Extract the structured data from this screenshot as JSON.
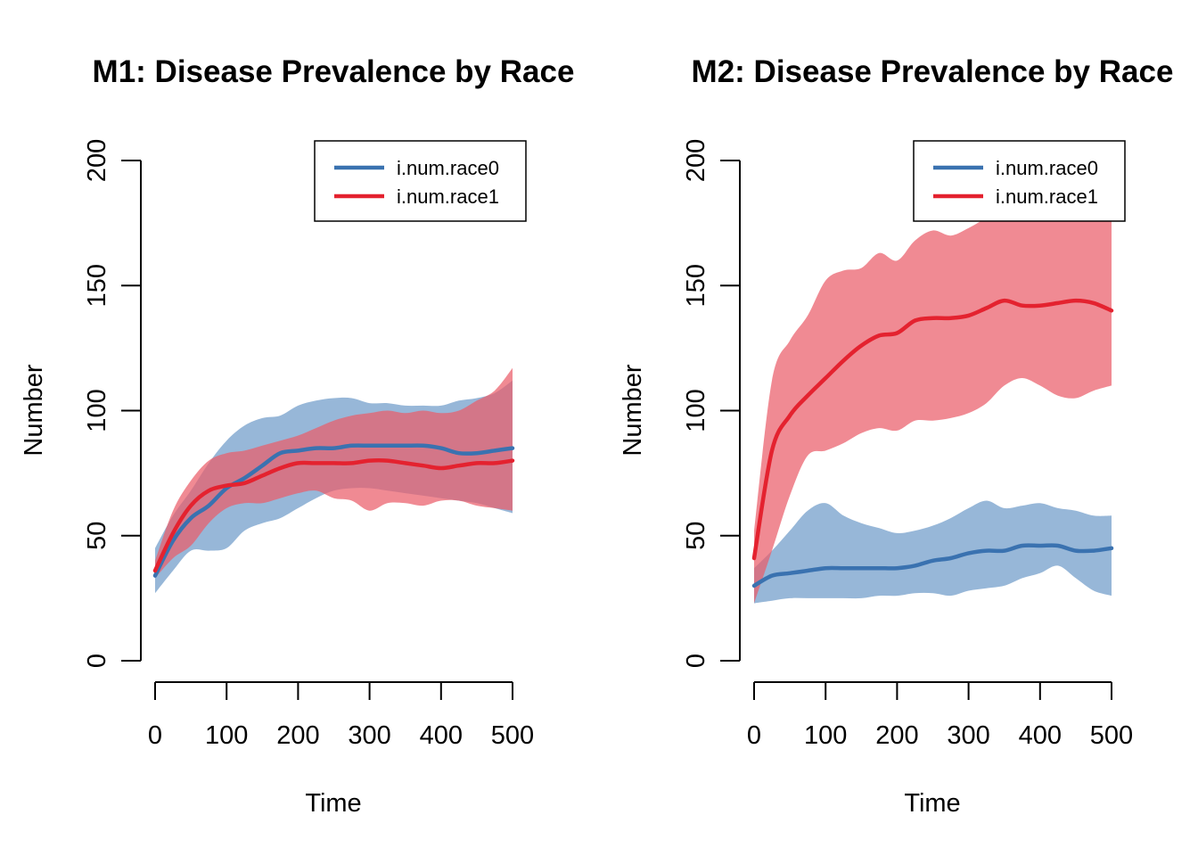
{
  "chart_data": [
    {
      "type": "area",
      "title": "M1: Disease Prevalence by Race",
      "xlabel": "Time",
      "ylabel": "Number",
      "xlim": [
        0,
        500
      ],
      "ylim": [
        0,
        200
      ],
      "xticks": [
        "0",
        "100",
        "200",
        "300",
        "400",
        "500"
      ],
      "yticks": [
        "0",
        "50",
        "100",
        "150",
        "200"
      ],
      "legend_position": "top-right",
      "series": [
        {
          "name": "i.num.race0",
          "color": "#3a72b0",
          "band_color": "#6f9bc9",
          "x": [
            0,
            25,
            50,
            75,
            100,
            125,
            150,
            175,
            200,
            225,
            250,
            275,
            300,
            325,
            350,
            375,
            400,
            425,
            450,
            475,
            500
          ],
          "mean": [
            34,
            48,
            57,
            62,
            69,
            73,
            78,
            83,
            84,
            85,
            85,
            86,
            86,
            86,
            86,
            86,
            85,
            83,
            83,
            84,
            85
          ],
          "upper": [
            45,
            58,
            68,
            79,
            88,
            94,
            97,
            98,
            102,
            104,
            105,
            105,
            103,
            103,
            102,
            102,
            102,
            104,
            105,
            107,
            112
          ],
          "lower": [
            27,
            36,
            44,
            44,
            45,
            52,
            55,
            57,
            61,
            65,
            68,
            69,
            69,
            68,
            67,
            66,
            65,
            64,
            63,
            61,
            59
          ]
        },
        {
          "name": "i.num.race1",
          "color": "#e4222f",
          "band_color": "#ea5d69",
          "x": [
            0,
            25,
            50,
            75,
            100,
            125,
            150,
            175,
            200,
            225,
            250,
            275,
            300,
            325,
            350,
            375,
            400,
            425,
            450,
            475,
            500
          ],
          "mean": [
            36,
            51,
            62,
            68,
            70,
            71,
            74,
            77,
            79,
            79,
            79,
            79,
            80,
            80,
            79,
            78,
            77,
            78,
            79,
            79,
            80
          ],
          "upper": [
            40,
            60,
            72,
            80,
            83,
            84,
            86,
            88,
            90,
            93,
            96,
            98,
            99,
            100,
            99,
            100,
            99,
            100,
            104,
            108,
            117
          ],
          "lower": [
            33,
            41,
            46,
            55,
            61,
            63,
            63,
            65,
            67,
            68,
            65,
            64,
            60,
            63,
            63,
            62,
            64,
            64,
            62,
            61,
            60
          ]
        }
      ]
    },
    {
      "type": "area",
      "title": "M2: Disease Prevalence by Race",
      "xlabel": "Time",
      "ylabel": "Number",
      "xlim": [
        0,
        500
      ],
      "ylim": [
        0,
        200
      ],
      "xticks": [
        "0",
        "100",
        "200",
        "300",
        "400",
        "500"
      ],
      "yticks": [
        "0",
        "50",
        "100",
        "150",
        "200"
      ],
      "legend_position": "top-right",
      "series": [
        {
          "name": "i.num.race0",
          "color": "#3a72b0",
          "band_color": "#6f9bc9",
          "x": [
            0,
            25,
            50,
            75,
            100,
            125,
            150,
            175,
            200,
            225,
            250,
            275,
            300,
            325,
            350,
            375,
            400,
            425,
            450,
            475,
            500
          ],
          "mean": [
            30,
            34,
            35,
            36,
            37,
            37,
            37,
            37,
            37,
            38,
            40,
            41,
            43,
            44,
            44,
            46,
            46,
            46,
            44,
            44,
            45
          ],
          "upper": [
            37,
            44,
            52,
            60,
            63,
            58,
            55,
            53,
            51,
            52,
            54,
            57,
            61,
            64,
            61,
            62,
            63,
            61,
            60,
            58,
            58
          ],
          "lower": [
            23,
            24,
            25,
            25,
            25,
            25,
            25,
            26,
            26,
            27,
            27,
            26,
            28,
            29,
            30,
            33,
            35,
            38,
            33,
            28,
            26
          ]
        },
        {
          "name": "i.num.race1",
          "color": "#e4222f",
          "band_color": "#ea5d69",
          "x": [
            0,
            25,
            50,
            75,
            100,
            125,
            150,
            175,
            200,
            225,
            250,
            275,
            300,
            325,
            350,
            375,
            400,
            425,
            450,
            475,
            500
          ],
          "mean": [
            41,
            84,
            98,
            106,
            113,
            120,
            126,
            130,
            131,
            136,
            137,
            137,
            138,
            141,
            144,
            142,
            142,
            143,
            144,
            143,
            140
          ],
          "upper": [
            52,
            112,
            128,
            138,
            152,
            156,
            157,
            163,
            160,
            168,
            172,
            170,
            173,
            177,
            180,
            185,
            188,
            185,
            190,
            190,
            193
          ],
          "lower": [
            23,
            44,
            66,
            82,
            84,
            87,
            91,
            93,
            92,
            96,
            96,
            97,
            99,
            103,
            110,
            113,
            110,
            106,
            105,
            108,
            110
          ]
        }
      ]
    }
  ]
}
